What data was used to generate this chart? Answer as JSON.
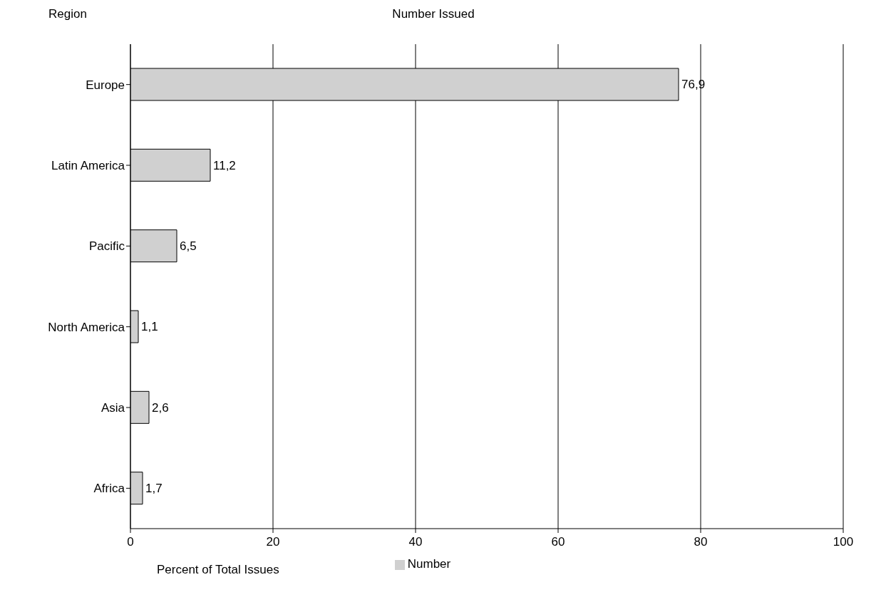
{
  "chart_data": {
    "type": "bar",
    "orientation": "horizontal",
    "title": "Number Issued",
    "ylabel": "Region",
    "xlabel": "Percent of Total Issues",
    "categories": [
      "Europe",
      "Latin America",
      "Pacific",
      "North America",
      "Asia",
      "Africa"
    ],
    "series": [
      {
        "name": "Number",
        "color": "#d0d0d0",
        "values": [
          76.9,
          11.2,
          6.5,
          1.1,
          2.6,
          1.7
        ],
        "value_labels": [
          "76,9",
          "11,2",
          "6,5",
          "1,1",
          "2,6",
          "1,7"
        ]
      }
    ],
    "xlim": [
      0,
      100
    ],
    "xticks": [
      0,
      20,
      40,
      60,
      80,
      100
    ],
    "grid": "x",
    "legend": "bottom"
  }
}
